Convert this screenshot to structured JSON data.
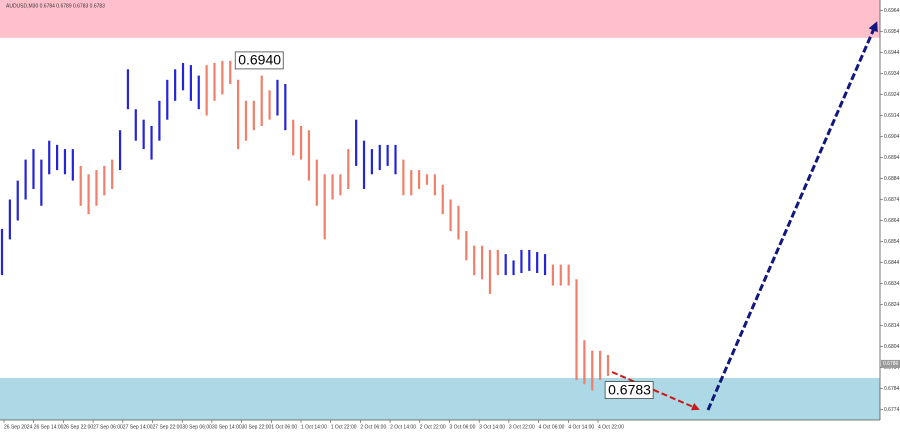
{
  "chart_data": {
    "type": "price-bars",
    "title": "AUDUSD,M30  0.6784 0.6789 0.6783 0.6783",
    "price_label": "0.6786",
    "ylim": [
      0.6769,
      0.6969
    ],
    "yticks": [
      0.6964,
      0.6954,
      0.6944,
      0.6934,
      0.6924,
      0.6914,
      0.6904,
      0.6894,
      0.6884,
      0.6874,
      0.6864,
      0.6854,
      0.6844,
      0.6834,
      0.6824,
      0.6814,
      0.6804,
      0.6794,
      0.6784,
      0.6774
    ],
    "xtick_labels": [
      "26 Sep 2024",
      "26 Sep 14:00",
      "26 Sep 22:00",
      "27 Sep 06:00",
      "27 Sep 14:00",
      "27 Sep 22:00",
      "30 Sep 06:00",
      "30 Sep 14:00",
      "30 Sep 22:00",
      "1 Oct 06:00",
      "1 Oct 14:00",
      "1 Oct 22:00",
      "2 Oct 06:00",
      "2 Oct 14:00",
      "2 Oct 22:00",
      "3 Oct 06:00",
      "3 Oct 14:00",
      "3 Oct 22:00",
      "4 Oct 06:00",
      "4 Oct 14:00",
      "4 Oct 22:00"
    ],
    "high": [
      0.686,
      0.6874,
      0.6883,
      0.6893,
      0.6898,
      0.6893,
      0.6902,
      0.69,
      0.6898,
      0.6898,
      0.689,
      0.6886,
      0.6888,
      0.689,
      0.6893,
      0.6907,
      0.6936,
      0.6917,
      0.6912,
      0.6909,
      0.6921,
      0.6931,
      0.6936,
      0.6939,
      0.6938,
      0.6933,
      0.6938,
      0.6939,
      0.694,
      0.694,
      0.6931,
      0.6921,
      0.6921,
      0.6933,
      0.6926,
      0.6931,
      0.6929,
      0.6912,
      0.6909,
      0.6907,
      0.6893,
      0.6886,
      0.6886,
      0.6886,
      0.6898,
      0.6912,
      0.6902,
      0.6898,
      0.69,
      0.69,
      0.69,
      0.6893,
      0.6888,
      0.6888,
      0.6886,
      0.6886,
      0.6881,
      0.6874,
      0.6871,
      0.6859,
      0.6852,
      0.6852,
      0.685,
      0.685,
      0.6848,
      0.6845,
      0.685,
      0.685,
      0.6849,
      0.6848,
      0.6843,
      0.6843,
      0.6843,
      0.6836,
      0.6807,
      0.6802,
      0.6802,
      0.68
    ],
    "low": [
      0.6838,
      0.6855,
      0.6864,
      0.6874,
      0.6879,
      0.6871,
      0.6886,
      0.6888,
      0.6886,
      0.6883,
      0.6871,
      0.6867,
      0.6871,
      0.6876,
      0.6879,
      0.6888,
      0.6917,
      0.6902,
      0.6898,
      0.6893,
      0.6902,
      0.6912,
      0.6921,
      0.6926,
      0.6921,
      0.6917,
      0.6914,
      0.6921,
      0.6924,
      0.6929,
      0.6898,
      0.6902,
      0.6907,
      0.6909,
      0.6912,
      0.6914,
      0.6907,
      0.6895,
      0.6893,
      0.6883,
      0.6871,
      0.6855,
      0.6874,
      0.6876,
      0.6879,
      0.689,
      0.6879,
      0.6886,
      0.6888,
      0.689,
      0.6886,
      0.6876,
      0.6876,
      0.6879,
      0.6881,
      0.6876,
      0.6867,
      0.6859,
      0.6855,
      0.6845,
      0.6838,
      0.6836,
      0.6829,
      0.6838,
      0.6838,
      0.6838,
      0.6839,
      0.684,
      0.6839,
      0.6838,
      0.6833,
      0.6833,
      0.6833,
      0.6788,
      0.6786,
      0.6783,
      0.6788,
      0.679
    ],
    "up_color": "#2424d8",
    "down_color": "#f07e68",
    "direction": [
      "u",
      "u",
      "u",
      "u",
      "u",
      "u",
      "u",
      "u",
      "u",
      "u",
      "d",
      "d",
      "d",
      "d",
      "d",
      "u",
      "u",
      "u",
      "u",
      "u",
      "u",
      "u",
      "u",
      "u",
      "u",
      "u",
      "d",
      "d",
      "d",
      "d",
      "d",
      "d",
      "d",
      "d",
      "d",
      "u",
      "u",
      "d",
      "d",
      "d",
      "d",
      "d",
      "d",
      "d",
      "d",
      "u",
      "u",
      "u",
      "u",
      "u",
      "u",
      "d",
      "d",
      "d",
      "d",
      "d",
      "d",
      "d",
      "d",
      "d",
      "d",
      "d",
      "d",
      "d",
      "u",
      "u",
      "u",
      "u",
      "u",
      "u",
      "d",
      "d",
      "d",
      "d",
      "d",
      "d",
      "d",
      "d"
    ],
    "zones": [
      {
        "from": 0.6951,
        "to": 0.6969,
        "color": "#ffc0cb"
      },
      {
        "from": 0.6769,
        "to": 0.6789,
        "color": "#add8e6"
      }
    ],
    "annotations": [
      {
        "text": "0.6940",
        "value": 0.694,
        "bar": 29
      },
      {
        "text": "0.6783",
        "value": 0.6783,
        "bar": 76
      }
    ]
  }
}
